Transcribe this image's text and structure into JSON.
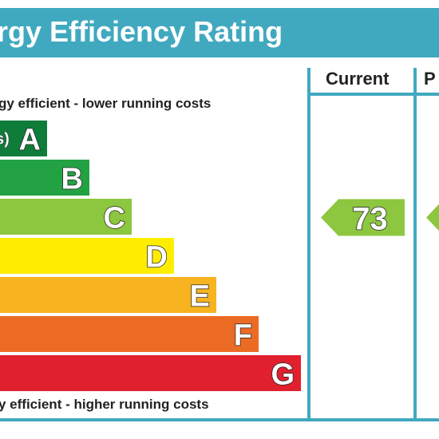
{
  "title": "rgy Efficiency Rating",
  "columns": {
    "current": "Current",
    "potential": "P"
  },
  "captions": {
    "top": "gy efficient - lower running costs",
    "bottom": "y efficient - higher running costs"
  },
  "chart_data": {
    "type": "bar",
    "title": "rgy Efficiency Rating",
    "categories": [
      "A",
      "B",
      "C",
      "D",
      "E",
      "F",
      "G"
    ],
    "band_prefixes": [
      "s)",
      "",
      "",
      "",
      "",
      "",
      ""
    ],
    "band_colors": [
      "#0f7c3a",
      "#23a243",
      "#8dc63f",
      "#ffed00",
      "#f7b320",
      "#ec6b24",
      "#e1202e"
    ],
    "current": {
      "value": 73,
      "band": "C",
      "color": "#8dc63f"
    },
    "potential": {
      "band": "C",
      "color": "#8dc63f"
    }
  }
}
